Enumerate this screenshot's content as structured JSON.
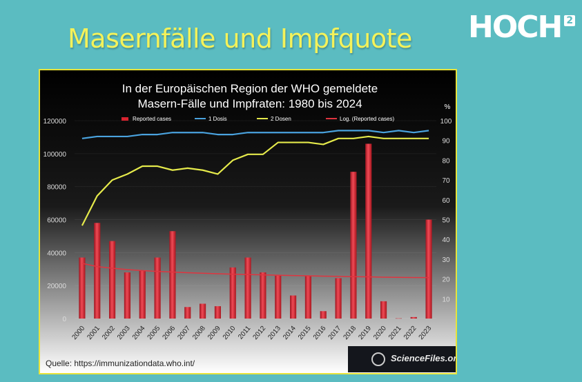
{
  "slide": {
    "title": "Masernfälle und Impfquote",
    "logo_text": "HOCH",
    "logo_superscript": "2"
  },
  "source_note": "Quelle:  https://immunizationdata.who.int/",
  "watermark_text": "ScienceFiles.org",
  "chart_data": {
    "type": "bar",
    "title": "In der Europäischen Region der WHO gemeldete",
    "subtitle": "Masern-Fälle und Impfraten: 1980 bis 2024",
    "y2_unit": "%",
    "categories": [
      "2000",
      "2001",
      "2002",
      "2003",
      "2004",
      "2005",
      "2006",
      "2007",
      "2008",
      "2009",
      "2010",
      "2011",
      "2012",
      "2013",
      "2014",
      "2015",
      "2016",
      "2017",
      "2018",
      "2019",
      "2020",
      "2021",
      "2022",
      "2023"
    ],
    "ylim": [
      0,
      120000
    ],
    "y_ticks": [
      "0",
      "20000",
      "40000",
      "60000",
      "80000",
      "100000",
      "120000"
    ],
    "y2lim": [
      0,
      100
    ],
    "y2_ticks": [
      "10",
      "20",
      "30",
      "40",
      "50",
      "60",
      "70",
      "80",
      "90",
      "100"
    ],
    "legend_position": "top",
    "series": [
      {
        "name": "Reported cases",
        "kind": "bar",
        "axis": "left",
        "color": "#d8232f",
        "values": [
          37000,
          58000,
          47000,
          28000,
          29000,
          37000,
          53000,
          7000,
          9000,
          7500,
          31000,
          37000,
          28000,
          26000,
          14000,
          26000,
          4500,
          24500,
          89000,
          106000,
          10500,
          150,
          900,
          60000
        ]
      },
      {
        "name": "1 Dosis",
        "kind": "line",
        "axis": "right",
        "color": "#4aa3df",
        "values": [
          91,
          92,
          92,
          92,
          93,
          93,
          94,
          94,
          94,
          93,
          93,
          94,
          94,
          94,
          94,
          94,
          94,
          95,
          95,
          95,
          94,
          95,
          94,
          95
        ]
      },
      {
        "name": "2 Dosen",
        "kind": "line",
        "axis": "right",
        "color": "#e5ea4b",
        "values": [
          47,
          62,
          70,
          73,
          77,
          77,
          75,
          76,
          75,
          73,
          80,
          83,
          83,
          89,
          89,
          89,
          88,
          91,
          91,
          92,
          91,
          91,
          91,
          91
        ]
      },
      {
        "name": "Log. (Reported cases)",
        "kind": "line",
        "axis": "left",
        "color": "#e0343f",
        "values": [
          33500,
          31500,
          30500,
          29700,
          29100,
          28600,
          28200,
          27800,
          27500,
          27200,
          26900,
          26700,
          26500,
          26300,
          26100,
          25900,
          25700,
          25600,
          25400,
          25300,
          25100,
          25000,
          24900,
          24800
        ]
      }
    ]
  }
}
